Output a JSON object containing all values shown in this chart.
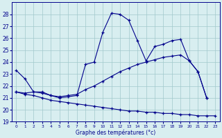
{
  "line1_x": [
    0,
    1,
    2,
    3,
    4,
    5,
    6,
    7,
    8,
    9,
    10,
    11,
    12,
    13,
    14,
    15,
    16,
    17,
    18,
    19,
    20,
    21,
    22
  ],
  "line1_y": [
    23.3,
    22.6,
    21.5,
    21.5,
    21.2,
    21.0,
    21.1,
    21.2,
    23.8,
    24.0,
    26.5,
    28.1,
    28.0,
    27.5,
    25.8,
    24.1,
    25.3,
    25.5,
    25.8,
    25.9,
    24.1,
    23.2,
    21.0
  ],
  "line2_x": [
    0,
    1,
    2,
    3,
    4,
    5,
    6,
    7,
    8,
    9,
    10,
    11,
    12,
    13,
    14,
    15,
    16,
    17,
    18,
    19,
    20,
    21,
    22
  ],
  "line2_y": [
    21.5,
    21.4,
    21.5,
    21.4,
    21.2,
    21.1,
    21.2,
    21.3,
    21.7,
    22.0,
    22.4,
    22.8,
    23.2,
    23.5,
    23.8,
    24.0,
    24.2,
    24.4,
    24.5,
    24.6,
    24.1,
    23.2,
    21.0
  ],
  "line3_x": [
    0,
    1,
    2,
    3,
    4,
    5,
    6,
    7,
    8,
    9,
    10,
    11,
    12,
    13,
    14,
    15,
    16,
    17,
    18,
    19,
    20,
    21,
    22,
    23
  ],
  "line3_y": [
    21.5,
    21.3,
    21.2,
    21.0,
    20.8,
    20.7,
    20.6,
    20.5,
    20.4,
    20.3,
    20.2,
    20.1,
    20.0,
    19.9,
    19.9,
    19.8,
    19.8,
    19.7,
    19.7,
    19.6,
    19.6,
    19.5,
    19.5,
    19.5
  ],
  "bg_color": "#d8eef0",
  "line_color": "#00008b",
  "grid_color": "#a0c8cc",
  "xlabel": "Graphe des températures (°c)",
  "ylim": [
    19,
    29
  ],
  "xlim": [
    -0.5,
    23.5
  ],
  "yticks": [
    19,
    20,
    21,
    22,
    23,
    24,
    25,
    26,
    27,
    28
  ],
  "xticks": [
    0,
    1,
    2,
    3,
    4,
    5,
    6,
    7,
    8,
    9,
    10,
    11,
    12,
    13,
    14,
    15,
    16,
    17,
    18,
    19,
    20,
    21,
    22,
    23
  ]
}
